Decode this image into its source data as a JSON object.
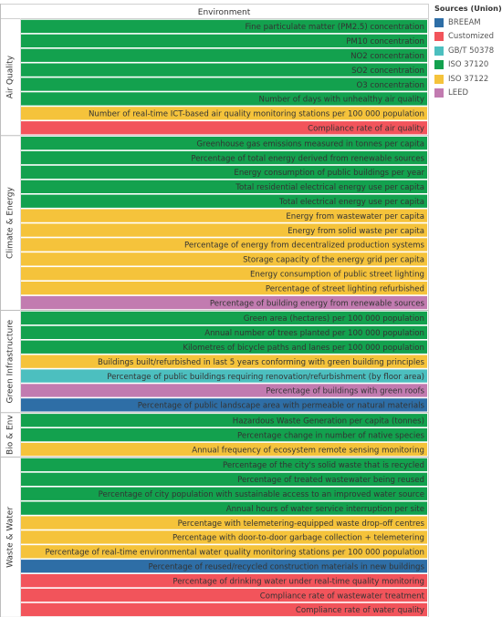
{
  "chart_data": {
    "type": "table",
    "header": "Environment",
    "legend_title": "Sources (Union)",
    "legend_placement": "right",
    "legend": [
      {
        "name": "BREEAM",
        "color": "#2e6ea6"
      },
      {
        "name": "Customized",
        "color": "#f2545b"
      },
      {
        "name": "GB/T 50378",
        "color": "#4cbfbf"
      },
      {
        "name": "ISO 37120",
        "color": "#13a14e"
      },
      {
        "name": "ISO 37122",
        "color": "#f5c33b"
      },
      {
        "name": "LEED",
        "color": "#c27bb0"
      }
    ],
    "groups": [
      {
        "label": "Air Quality",
        "rows": [
          {
            "label": "Fine particulate matter (PM2.5) concentration",
            "source": "ISO 37120"
          },
          {
            "label": "PM10 concentration",
            "source": "ISO 37120"
          },
          {
            "label": "NO2 concentration",
            "source": "ISO 37120"
          },
          {
            "label": "SO2 concentration",
            "source": "ISO 37120"
          },
          {
            "label": "O3 concentration",
            "source": "ISO 37120"
          },
          {
            "label": "Number of days with unhealthy air quality",
            "source": "ISO 37120"
          },
          {
            "label": "Number of real-time ICT-based air quality monitoring stations per 100 000 population",
            "source": "ISO 37122"
          },
          {
            "label": "Compliance rate of air quality",
            "source": "Customized"
          }
        ]
      },
      {
        "label": "Climate & Energy",
        "rows": [
          {
            "label": "Greenhouse gas emissions measured in tonnes per capita",
            "source": "ISO 37120"
          },
          {
            "label": "Percentage of total energy derived from renewable sources",
            "source": "ISO 37120"
          },
          {
            "label": "Energy consumption of public buildings per year",
            "source": "ISO 37120"
          },
          {
            "label": "Total residential electrical energy use per capita",
            "source": "ISO 37120"
          },
          {
            "label": "Total electrical energy use per capita",
            "source": "ISO 37120"
          },
          {
            "label": "Energy from wastewater per capita",
            "source": "ISO 37122"
          },
          {
            "label": "Energy from solid waste per capita",
            "source": "ISO 37122"
          },
          {
            "label": "Percentage of energy from decentralized production systems",
            "source": "ISO 37122"
          },
          {
            "label": "Storage capacity of the energy grid per capita",
            "source": "ISO 37122"
          },
          {
            "label": "Energy consumption of public street lighting",
            "source": "ISO 37122"
          },
          {
            "label": "Percentage of street lighting refurbished",
            "source": "ISO 37122"
          },
          {
            "label": "Percentage of building energy from renewable sources",
            "source": "LEED"
          }
        ]
      },
      {
        "label": "Green Infrastructure",
        "rows": [
          {
            "label": "Green area (hectares) per 100 000 population",
            "source": "ISO 37120"
          },
          {
            "label": "Annual number of trees planted per 100 000 population",
            "source": "ISO 37120"
          },
          {
            "label": "Kilometres of bicycle paths and lanes per 100 000 population",
            "source": "ISO 37120"
          },
          {
            "label": "Buildings built/refurbished in last 5 years conforming with green building principles",
            "source": "ISO 37122"
          },
          {
            "label": "Percentage of public buildings requiring renovation/refurbishment (by floor area)",
            "source": "GB/T 50378"
          },
          {
            "label": "Percentage of buildings with green roofs",
            "source": "LEED"
          },
          {
            "label": "Percentage of public landscape area with permeable or natural materials",
            "source": "BREEAM"
          }
        ]
      },
      {
        "label": "Bio & Env",
        "rows": [
          {
            "label": "Hazardous Waste Generation per capita (tonnes)",
            "source": "ISO 37120"
          },
          {
            "label": "Percentage change in number of native species",
            "source": "ISO 37120"
          },
          {
            "label": "Annual frequency of ecosystem remote sensing monitoring",
            "source": "ISO 37122"
          }
        ]
      },
      {
        "label": "Waste & Water",
        "rows": [
          {
            "label": "Percentage of the city's solid waste that is recycled",
            "source": "ISO 37120"
          },
          {
            "label": "Percentage of treated wastewater being reused",
            "source": "ISO 37120"
          },
          {
            "label": "Percentage of city population with sustainable access to an improved water source",
            "source": "ISO 37120"
          },
          {
            "label": "Annual hours of water service interruption per site",
            "source": "ISO 37120"
          },
          {
            "label": "Percentage with telemetering-equipped waste drop-off centres",
            "source": "ISO 37122"
          },
          {
            "label": "Percentage with door-to-door garbage collection + telemetering",
            "source": "ISO 37122"
          },
          {
            "label": "Percentage of real-time environmental water quality monitoring stations per 100 000 population",
            "source": "ISO 37122"
          },
          {
            "label": "Percentage of reused/recycled construction materials in new buildings",
            "source": "BREEAM"
          },
          {
            "label": "Percentage of drinking water under real-time quality monitoring",
            "source": "Customized"
          },
          {
            "label": "Compliance rate of wastewater treatment",
            "source": "Customized"
          },
          {
            "label": "Compliance rate of water quality",
            "source": "Customized"
          }
        ]
      }
    ]
  }
}
